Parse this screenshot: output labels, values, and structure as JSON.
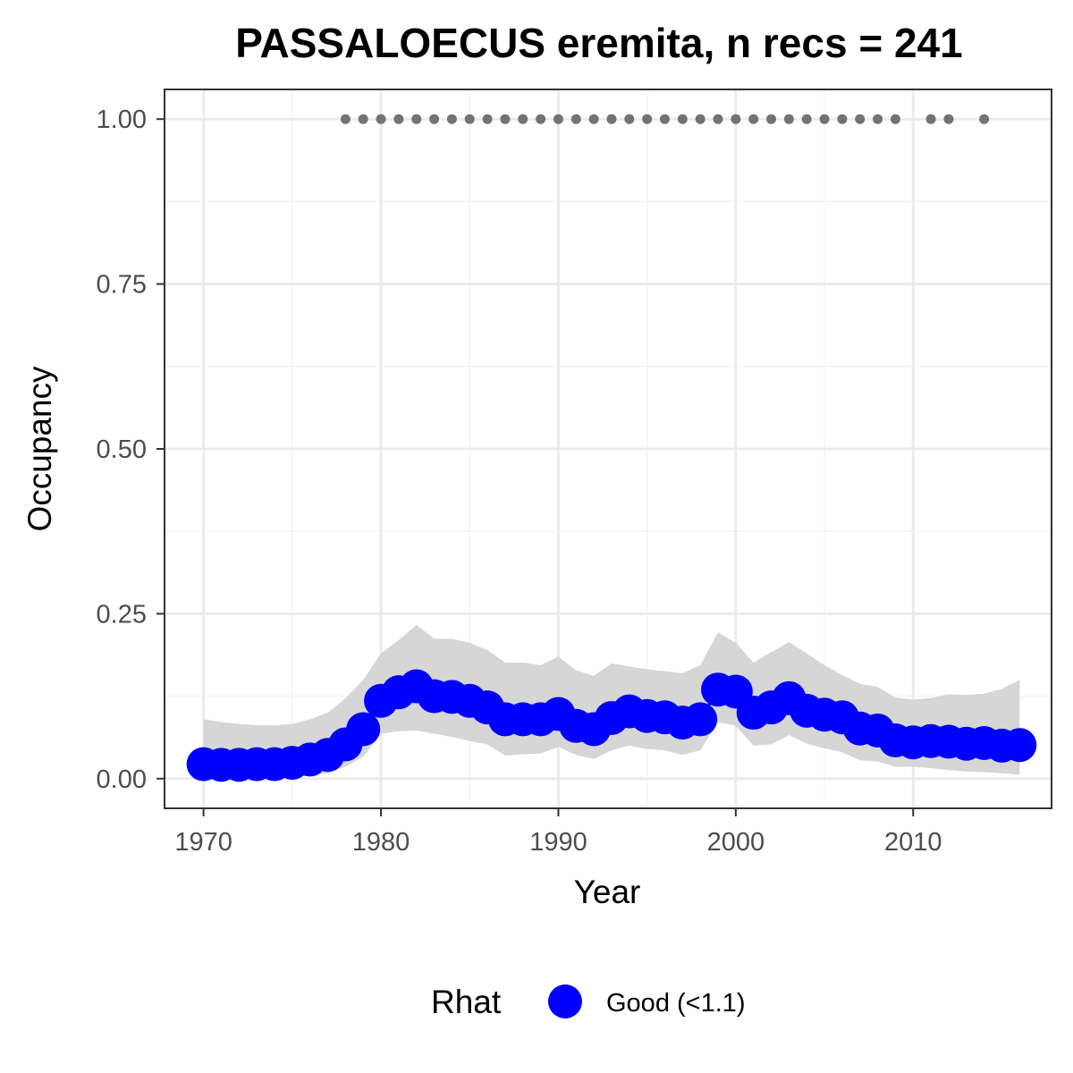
{
  "chart_data": {
    "type": "line",
    "title": "PASSALOECUS eremita, n recs = 241",
    "xlabel": "Year",
    "ylabel": "Occupancy",
    "xlim": [
      1967.8,
      2017.8
    ],
    "ylim": [
      -0.045,
      1.045
    ],
    "x_ticks": [
      1970,
      1980,
      1990,
      2000,
      2010
    ],
    "x_tick_labels": [
      "1970",
      "1980",
      "1990",
      "2000",
      "2010"
    ],
    "y_ticks": [
      0,
      0.25,
      0.5,
      0.75,
      1.0
    ],
    "y_tick_labels": [
      "0.00",
      "0.25",
      "0.50",
      "0.75",
      "1.00"
    ],
    "grid": true,
    "legend": {
      "position": "bottom",
      "title": "Rhat",
      "label": "Good (<1.1)"
    },
    "colors": {
      "points": "#0000ff",
      "ribbon": "#d6d6d6",
      "records": "#737373",
      "grid_major": "#ebebeb",
      "grid_minor": "#f4f4f4",
      "border": "#333333"
    },
    "series": [
      {
        "name": "Good (<1.1)",
        "x": [
          1970,
          1971,
          1972,
          1973,
          1974,
          1975,
          1976,
          1977,
          1978,
          1979,
          1980,
          1981,
          1982,
          1983,
          1984,
          1985,
          1986,
          1987,
          1988,
          1989,
          1990,
          1991,
          1992,
          1993,
          1994,
          1995,
          1996,
          1997,
          1998,
          1999,
          2000,
          2001,
          2002,
          2003,
          2004,
          2005,
          2006,
          2007,
          2008,
          2009,
          2010,
          2011,
          2012,
          2013,
          2014,
          2015,
          2016
        ],
        "y": [
          0.022,
          0.021,
          0.021,
          0.022,
          0.022,
          0.024,
          0.029,
          0.036,
          0.052,
          0.075,
          0.118,
          0.131,
          0.14,
          0.125,
          0.124,
          0.118,
          0.108,
          0.09,
          0.09,
          0.09,
          0.098,
          0.08,
          0.075,
          0.092,
          0.102,
          0.095,
          0.093,
          0.085,
          0.09,
          0.135,
          0.132,
          0.1,
          0.108,
          0.122,
          0.103,
          0.097,
          0.093,
          0.076,
          0.073,
          0.058,
          0.055,
          0.057,
          0.056,
          0.053,
          0.054,
          0.05,
          0.051
        ],
        "lower": [
          0.003,
          0.003,
          0.003,
          0.003,
          0.003,
          0.003,
          0.004,
          0.008,
          0.018,
          0.033,
          0.068,
          0.072,
          0.073,
          0.068,
          0.063,
          0.057,
          0.052,
          0.035,
          0.037,
          0.038,
          0.048,
          0.036,
          0.03,
          0.043,
          0.05,
          0.045,
          0.043,
          0.036,
          0.043,
          0.086,
          0.08,
          0.05,
          0.052,
          0.066,
          0.053,
          0.046,
          0.04,
          0.028,
          0.026,
          0.018,
          0.018,
          0.016,
          0.013,
          0.011,
          0.01,
          0.008,
          0.006
        ],
        "upper": [
          0.09,
          0.086,
          0.083,
          0.081,
          0.081,
          0.083,
          0.09,
          0.1,
          0.122,
          0.15,
          0.19,
          0.21,
          0.233,
          0.212,
          0.212,
          0.206,
          0.195,
          0.176,
          0.176,
          0.172,
          0.185,
          0.164,
          0.156,
          0.175,
          0.17,
          0.166,
          0.163,
          0.16,
          0.172,
          0.222,
          0.206,
          0.176,
          0.192,
          0.207,
          0.19,
          0.172,
          0.157,
          0.144,
          0.139,
          0.123,
          0.12,
          0.122,
          0.128,
          0.127,
          0.129,
          0.136,
          0.15
        ]
      },
      {
        "name": "records",
        "x": [
          1978,
          1979,
          1980,
          1981,
          1982,
          1983,
          1984,
          1985,
          1986,
          1987,
          1988,
          1989,
          1990,
          1991,
          1992,
          1993,
          1994,
          1995,
          1996,
          1997,
          1998,
          1999,
          2000,
          2001,
          2002,
          2003,
          2004,
          2005,
          2006,
          2007,
          2008,
          2009,
          2011,
          2012,
          2014
        ],
        "y": [
          1,
          1,
          1,
          1,
          1,
          1,
          1,
          1,
          1,
          1,
          1,
          1,
          1,
          1,
          1,
          1,
          1,
          1,
          1,
          1,
          1,
          1,
          1,
          1,
          1,
          1,
          1,
          1,
          1,
          1,
          1,
          1,
          1,
          1,
          1
        ]
      }
    ]
  }
}
